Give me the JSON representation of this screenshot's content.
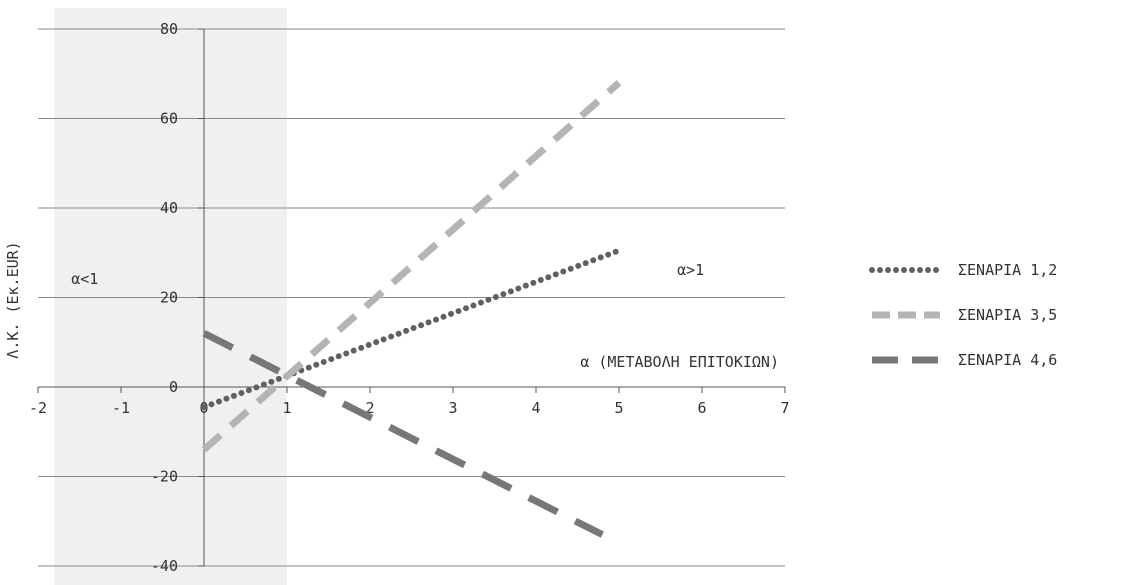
{
  "chart_data": {
    "type": "line",
    "title": "",
    "xlabel": "α  (ΜΕΤΑΒΟΛΗ ΕΠΙΤΟΚΙΩΝ)",
    "ylabel": "Λ.Κ.  (Εκ.EUR)",
    "xlim": [
      -2,
      7
    ],
    "ylim": [
      -40,
      80
    ],
    "xticks": [
      "-2",
      "-1",
      "0",
      "1",
      "2",
      "3",
      "4",
      "5",
      "6",
      "7"
    ],
    "yticks": [
      "-40",
      "-20",
      "0",
      "20",
      "40",
      "60",
      "80"
    ],
    "grid": "horizontal",
    "shaded_region": {
      "x_from": -1.8,
      "x_to": 1,
      "color": "#f0f0f0"
    },
    "annotations": [
      {
        "text": "α<1",
        "x": -1.6,
        "y": 23
      },
      {
        "text": "α>1",
        "x": 5.7,
        "y": 25
      }
    ],
    "legend_position": "right",
    "series": [
      {
        "name": "ΣΕΝΑΡΙΑ 1,2",
        "style": "dotted",
        "color": "#606060",
        "x": [
          0,
          5
        ],
        "y": [
          -4.5,
          30.5
        ]
      },
      {
        "name": "ΣΕΝΑΡΙΑ 3,5",
        "style": "dashed",
        "color": "#b4b4b4",
        "x": [
          0,
          5
        ],
        "y": [
          -14,
          68
        ]
      },
      {
        "name": "ΣΕΝΑΡΙΑ 4,6",
        "style": "longdash",
        "color": "#777777",
        "x": [
          0,
          4.8
        ],
        "y": [
          12,
          -33
        ]
      }
    ]
  }
}
